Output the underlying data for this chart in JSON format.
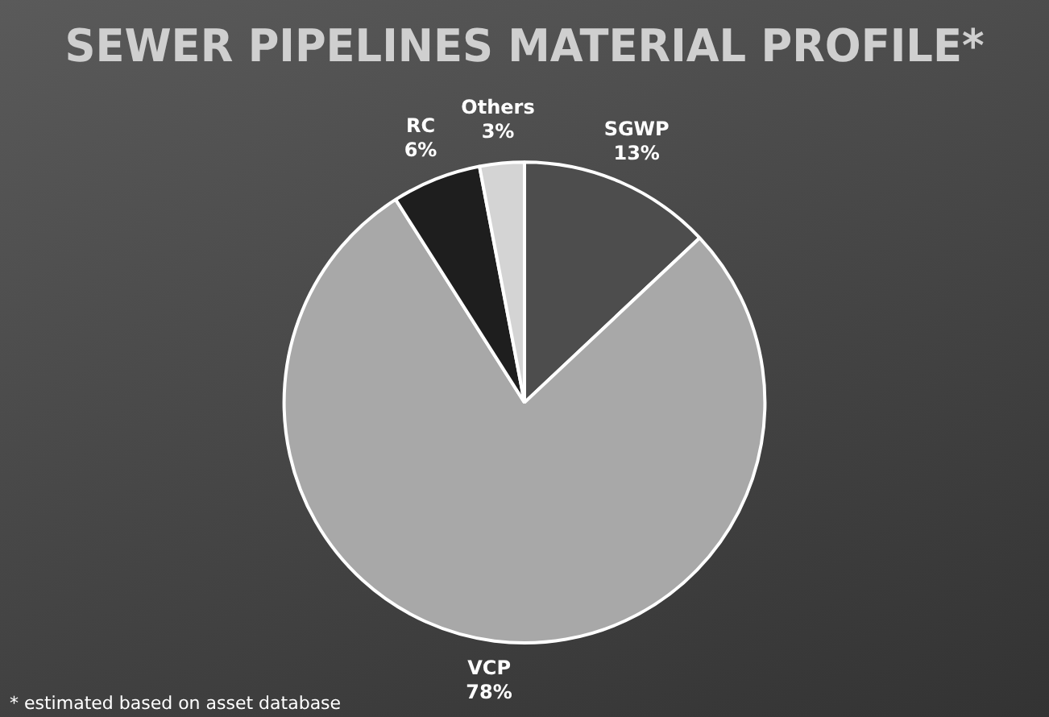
{
  "chart_data": {
    "type": "pie",
    "title": "SEWER PIPELINES MATERIAL PROFILE*",
    "categories": [
      "SGWP",
      "VCP",
      "RC",
      "Others"
    ],
    "values": [
      13,
      78,
      6,
      3
    ],
    "value_labels": [
      "13%",
      "78%",
      "6%",
      "3%"
    ],
    "colors": [
      "#4d4d4d",
      "#a8a8a8",
      "#1e1e1e",
      "#d4d4d4"
    ],
    "legend": false,
    "annotations": [
      "* estimated based on asset database"
    ]
  }
}
